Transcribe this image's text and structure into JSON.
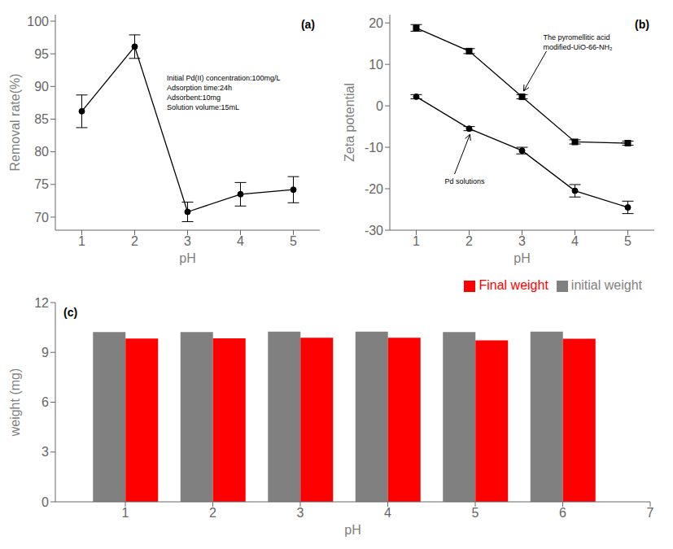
{
  "chart_data": [
    {
      "type": "line",
      "title": "(a)",
      "x": [
        1,
        2,
        3,
        4,
        5
      ],
      "series": [
        {
          "color": "black",
          "marker": "circle",
          "line_style": "solid",
          "values": [
            86.2,
            96.1,
            70.8,
            73.5,
            74.2
          ],
          "errors": [
            2.5,
            1.8,
            1.5,
            1.8,
            2.0
          ]
        }
      ],
      "xlabel": "pH",
      "ylabel": "Removal rate(%)",
      "xlim": [
        0.5,
        5.5
      ],
      "xticks": [
        1,
        2,
        3,
        4,
        5
      ],
      "ylim": [
        68,
        101
      ],
      "yticks": [
        70,
        75,
        80,
        85,
        90,
        95,
        100
      ],
      "grid": false,
      "annotations": [
        "Initial Pd(II) concentration:100mg/L",
        "Adsorption time:24h",
        "Adsorbent:10mg",
        "Solution volume:15mL"
      ]
    },
    {
      "type": "line",
      "title": "(b)",
      "x": [
        1,
        2,
        3,
        4,
        5
      ],
      "series": [
        {
          "name": "The pyromellitic acid\nmodified-UiO-66-NH₂",
          "color": "black",
          "marker": "square",
          "line_style": "solid",
          "values": [
            18.8,
            13.2,
            2.2,
            -8.7,
            -9.0
          ],
          "errors": [
            0.8,
            0.6,
            0.5,
            0.5,
            0.5
          ]
        },
        {
          "name": "Pd solutions",
          "color": "black",
          "marker": "circle",
          "line_style": "solid",
          "values": [
            2.2,
            -5.5,
            -10.8,
            -20.5,
            -24.5
          ],
          "errors": [
            0.5,
            0.5,
            0.8,
            1.5,
            1.5
          ]
        }
      ],
      "xlabel": "pH",
      "ylabel": "Zeta potential",
      "xlim": [
        0.5,
        5.5
      ],
      "xticks": [
        1,
        2,
        3,
        4,
        5
      ],
      "ylim": [
        -30,
        22
      ],
      "yticks": [
        -30,
        -20,
        -10,
        0,
        10,
        20
      ],
      "grid": false
    },
    {
      "type": "bar",
      "title": "(c)",
      "x": [
        1,
        2,
        3,
        4,
        5,
        6
      ],
      "series": [
        {
          "name": "initial weight",
          "color": "#808080",
          "values": [
            10.22,
            10.22,
            10.25,
            10.25,
            10.22,
            10.25
          ]
        },
        {
          "name": "Final weight",
          "color": "#FF0000",
          "values": [
            9.83,
            9.85,
            9.88,
            9.88,
            9.72,
            9.82
          ]
        }
      ],
      "xlabel": "pH",
      "ylabel": "weight (mg)",
      "xlim": [
        0.2,
        7
      ],
      "xticks": [
        1,
        2,
        3,
        4,
        5,
        6,
        7
      ],
      "ylim": [
        0,
        12
      ],
      "yticks": [
        0,
        3,
        6,
        9,
        12
      ],
      "grid": false,
      "legend": "upper right"
    }
  ]
}
